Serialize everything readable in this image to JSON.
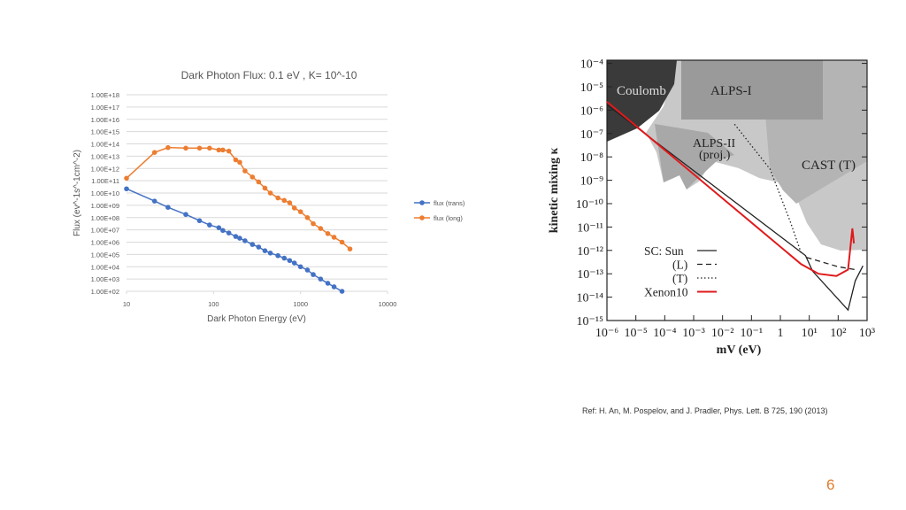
{
  "chart_data": [
    {
      "type": "line",
      "title": "Dark Photon Flux: 0.1 eV , K= 10^-10",
      "xlabel": "Dark Photon Energy (eV)",
      "ylabel": "Flux  (ev^-1s^-1cm^-2)",
      "log_x": true,
      "log_y": true,
      "grid": true,
      "legend": "right",
      "x": [
        10,
        21,
        30,
        48,
        69,
        90,
        115,
        128,
        150,
        180,
        200,
        230,
        280,
        330,
        390,
        450,
        550,
        650,
        750,
        850,
        1000,
        1200,
        1400,
        1700,
        2060,
        2430,
        3000,
        3700
      ],
      "series": [
        {
          "name": "flux (trans)",
          "color": "#4472c4",
          "values": [
            22000000000.0,
            2200000000.0,
            680000000.0,
            180000000.0,
            56000000.0,
            25000000.0,
            15000000.0,
            9000000.0,
            5600000.0,
            2900000.0,
            2100000.0,
            1300000.0,
            650000.0,
            400000.0,
            200000.0,
            130000.0,
            80000.0,
            50000.0,
            32000.0,
            20000.0,
            10000.0,
            5400.0,
            2300.0,
            1000.0,
            450,
            230,
            100,
            null
          ]
        },
        {
          "name": "flux (long)",
          "color": "#ed7d31",
          "values": [
            160000000000.0,
            20000000000000.0,
            50000000000000.0,
            45000000000000.0,
            45000000000000.0,
            45000000000000.0,
            32000000000000.0,
            32000000000000.0,
            26000000000000.0,
            5000000000000.0,
            3200000000000.0,
            630000000000.0,
            200000000000.0,
            80000000000.0,
            25000000000.0,
            10000000000.0,
            4000000000.0,
            2500000000.0,
            1600000000.0,
            600000000.0,
            300000000.0,
            100000000.0,
            32000000.0,
            13000000.0,
            5000000.0,
            2500000.0,
            1000000.0,
            280000.0
          ]
        }
      ],
      "xlim": [
        10,
        10000
      ],
      "xticks": [
        10,
        100,
        1000,
        10000
      ],
      "ylim": [
        100,
        1e+18
      ],
      "yticks": [
        {
          "value": 100,
          "label": "1.00E+02"
        },
        {
          "value": 1000,
          "label": "1.00E+03"
        },
        {
          "value": 10000,
          "label": "1.00E+04"
        },
        {
          "value": 100000,
          "label": "1.00E+05"
        },
        {
          "value": 1000000,
          "label": "1.00E+06"
        },
        {
          "value": 10000000.0,
          "label": "1.00E+07"
        },
        {
          "value": 100000000.0,
          "label": "1.00E+08"
        },
        {
          "value": 1000000000.0,
          "label": "1.00E+09"
        },
        {
          "value": 10000000000.0,
          "label": "1.00E+10"
        },
        {
          "value": 100000000000.0,
          "label": "1.00E+11"
        },
        {
          "value": 1000000000000.0,
          "label": "1.00E+12"
        },
        {
          "value": 10000000000000.0,
          "label": "1.00E+13"
        },
        {
          "value": 100000000000000.0,
          "label": "1.00E+14"
        },
        {
          "value": 1000000000000000.0,
          "label": "1.00E+15"
        },
        {
          "value": 1e+16,
          "label": "1.00E+16"
        },
        {
          "value": 1e+17,
          "label": "1.00E+17"
        },
        {
          "value": 1e+18,
          "label": "1.00E+18"
        }
      ]
    },
    {
      "type": "line",
      "xlabel": "mV (eV)",
      "ylabel": "kinetic mixing κ",
      "log_x": true,
      "log_y": true,
      "annotations": [
        "Coulomb",
        "ALPS-I",
        "ALPS-II",
        "(proj.)",
        "CAST (T)"
      ],
      "series": [
        {
          "name": "SC: Sun",
          "color": "#222222",
          "line_style": "solid",
          "x": [
            1e-06,
            7.4,
            13,
            220,
            390,
            720
          ],
          "values": [
            1.7e-06,
            6e-13,
            1.3e-13,
            2.8e-15,
            5e-14,
            2.2e-13
          ]
        },
        {
          "name": "(L)",
          "color": "#222222",
          "line_style": "dashed",
          "x": [
            8,
            100,
            400
          ],
          "values": [
            5e-13,
            2e-13,
            1.5e-13
          ]
        },
        {
          "name": "(T)",
          "color": "#222222",
          "line_style": "dotted",
          "x": [
            0.026,
            0.44,
            2.2,
            5.2
          ],
          "values": [
            2.5e-07,
            3e-09,
            1.7e-11,
            8e-13
          ]
        },
        {
          "name": "Xenon10",
          "color": "#e0191b",
          "line_style": "solid",
          "x": [
            1e-06,
            5.2,
            21,
            87,
            220,
            310,
            350
          ],
          "values": [
            2.3e-06,
            2.6e-13,
            1e-13,
            8e-14,
            1.5e-13,
            8.7e-12,
            2e-12
          ]
        }
      ],
      "xlim": [
        1e-06,
        1000
      ],
      "xticks": [
        {
          "value": 1e-06,
          "label": "10⁻⁶"
        },
        {
          "value": 1e-05,
          "label": "10⁻⁵"
        },
        {
          "value": 0.0001,
          "label": "10⁻⁴"
        },
        {
          "value": 0.001,
          "label": "10⁻³"
        },
        {
          "value": 0.01,
          "label": "10⁻²"
        },
        {
          "value": 0.1,
          "label": "10⁻¹"
        },
        1,
        {
          "value": 10,
          "label": "10¹"
        },
        {
          "value": 100,
          "label": "10²"
        },
        {
          "value": 1000,
          "label": "10³"
        }
      ],
      "ylim": [
        1e-15,
        0.0001
      ],
      "yticks": [
        {
          "value": 1e-15,
          "label": "10⁻¹⁵"
        },
        {
          "value": 1e-14,
          "label": "10⁻¹⁴"
        },
        {
          "value": 1e-13,
          "label": "10⁻¹³"
        },
        {
          "value": 1e-12,
          "label": "10⁻¹²"
        },
        {
          "value": 1e-11,
          "label": "10⁻¹¹"
        },
        {
          "value": 1e-10,
          "label": "10⁻¹⁰"
        },
        {
          "value": 1e-09,
          "label": "10⁻⁹"
        },
        {
          "value": 1e-08,
          "label": "10⁻⁸"
        },
        {
          "value": 1e-07,
          "label": "10⁻⁷"
        },
        {
          "value": 1e-06,
          "label": "10⁻⁶"
        },
        {
          "value": 1e-05,
          "label": "10⁻⁵"
        },
        {
          "value": 0.0001,
          "label": "10⁻⁴"
        }
      ]
    }
  ],
  "reference": "Ref: H. An, M. Pospelov, and J. Pradler, Phys. Lett. B 725, 190 (2013)",
  "page_number": "6"
}
